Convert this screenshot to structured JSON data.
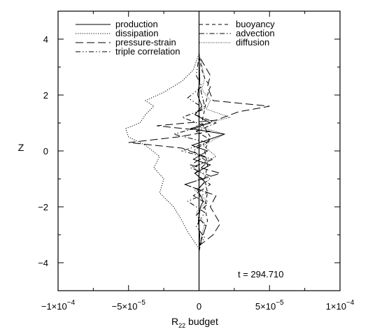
{
  "chart_data": {
    "type": "line",
    "title": "",
    "xlabel": "R",
    "xlabel_sub": "22",
    "xlabel_rest": " budget",
    "ylabel": "Z",
    "xlim": [
      -0.0001,
      0.0001
    ],
    "ylim": [
      -5,
      5
    ],
    "xticks": [
      -0.0001,
      -5e-05,
      0,
      5e-05,
      0.0001
    ],
    "xtick_labels": [
      {
        "base": "−1×10",
        "exp": "−4"
      },
      {
        "base": "−5×10",
        "exp": "−5"
      },
      {
        "base": "0",
        "exp": ""
      },
      {
        "base": "5×10",
        "exp": "−5"
      },
      {
        "base": "1×10",
        "exp": "−4"
      }
    ],
    "yticks": [
      -4,
      -2,
      0,
      2,
      4
    ],
    "ytick_labels": [
      "−4",
      "−2",
      "0",
      "2",
      "4"
    ],
    "annotation": "t = 294.710",
    "legend_placement": "top, two columns",
    "series": [
      {
        "name": "production",
        "style": "solid",
        "points": [
          [
            0,
            -3.6
          ],
          [
            5e-07,
            -3.0
          ],
          [
            -5e-07,
            -2.5
          ],
          [
            1e-06,
            -2.0
          ],
          [
            3e-06,
            -1.8
          ],
          [
            -1e-06,
            -1.4
          ],
          [
            4e-06,
            -1.1
          ],
          [
            -3e-06,
            -0.8
          ],
          [
            8e-06,
            -0.5
          ],
          [
            -4e-06,
            -0.3
          ],
          [
            6e-06,
            0.0
          ],
          [
            -5e-06,
            0.2
          ],
          [
            1.8e-05,
            0.6
          ],
          [
            -6e-06,
            0.8
          ],
          [
            8e-06,
            1.0
          ],
          [
            -3e-06,
            1.3
          ],
          [
            2e-06,
            1.6
          ],
          [
            -1e-06,
            2.0
          ],
          [
            5e-07,
            2.5
          ],
          [
            0,
            3.6
          ]
        ]
      },
      {
        "name": "dissipation",
        "style": "dotted",
        "points": [
          [
            0,
            -3.5
          ],
          [
            -4e-06,
            -3.2
          ],
          [
            -8e-06,
            -2.9
          ],
          [
            -1.2e-05,
            -2.5
          ],
          [
            -1.8e-05,
            -2.0
          ],
          [
            -2.8e-05,
            -1.5
          ],
          [
            -2.5e-05,
            -1.0
          ],
          [
            -3.2e-05,
            -0.6
          ],
          [
            -2.8e-05,
            -0.2
          ],
          [
            -3.8e-05,
            0.2
          ],
          [
            -5e-05,
            0.5
          ],
          [
            -5.2e-05,
            0.8
          ],
          [
            -4.2e-05,
            1.0
          ],
          [
            -3.8e-05,
            1.3
          ],
          [
            -3.2e-05,
            1.6
          ],
          [
            -3.8e-05,
            1.8
          ],
          [
            -2.5e-05,
            2.1
          ],
          [
            -1.2e-05,
            2.5
          ],
          [
            -4e-06,
            2.9
          ],
          [
            0,
            3.5
          ]
        ]
      },
      {
        "name": "pressure-strain",
        "style": "longdash",
        "points": [
          [
            0,
            -3.4
          ],
          [
            1e-05,
            -3.0
          ],
          [
            1.5e-05,
            -2.6
          ],
          [
            8e-06,
            -2.0
          ],
          [
            1.2e-05,
            -1.6
          ],
          [
            -1e-05,
            -1.2
          ],
          [
            1.5e-05,
            -0.8
          ],
          [
            -6e-06,
            -0.5
          ],
          [
            4e-06,
            -0.2
          ],
          [
            -1.2e-05,
            0.1
          ],
          [
            -5e-05,
            0.3
          ],
          [
            -1.5e-05,
            0.5
          ],
          [
            8e-06,
            0.7
          ],
          [
            -3e-05,
            0.9
          ],
          [
            1.2e-05,
            1.1
          ],
          [
            2.8e-05,
            1.4
          ],
          [
            5e-05,
            1.6
          ],
          [
            1e-05,
            1.8
          ],
          [
            6e-06,
            2.3
          ],
          [
            8e-06,
            2.7
          ],
          [
            0,
            3.4
          ]
        ]
      },
      {
        "name": "triple correlation",
        "style": "dashdotdot",
        "points": [
          [
            0,
            -3.4
          ],
          [
            4e-06,
            -3.1
          ],
          [
            -2e-06,
            -2.7
          ],
          [
            4e-06,
            -2.2
          ],
          [
            -8e-06,
            -1.8
          ],
          [
            6e-06,
            -1.5
          ],
          [
            -1e-05,
            -1.2
          ],
          [
            8e-06,
            -0.9
          ],
          [
            -6e-06,
            -0.6
          ],
          [
            1e-05,
            -0.3
          ],
          [
            -1.2e-05,
            0.0
          ],
          [
            6e-06,
            0.3
          ],
          [
            -1.8e-05,
            0.6
          ],
          [
            4e-06,
            0.9
          ],
          [
            -1.2e-05,
            1.2
          ],
          [
            4e-06,
            1.5
          ],
          [
            -8e-06,
            1.9
          ],
          [
            2e-06,
            2.3
          ],
          [
            -2e-06,
            2.7
          ],
          [
            0,
            3.4
          ]
        ]
      },
      {
        "name": "buoyancy",
        "style": "shortdash",
        "points": [
          [
            0,
            -3.4
          ],
          [
            3e-06,
            -3.0
          ],
          [
            6e-06,
            -2.5
          ],
          [
            4e-06,
            -2.0
          ],
          [
            6e-06,
            -1.5
          ],
          [
            4e-06,
            -1.0
          ],
          [
            6e-06,
            -0.5
          ],
          [
            4e-06,
            0.0
          ],
          [
            8e-06,
            0.5
          ],
          [
            2e-06,
            1.0
          ],
          [
            4e-06,
            1.5
          ],
          [
            6e-06,
            2.0
          ],
          [
            8e-06,
            2.3
          ],
          [
            4e-06,
            2.6
          ],
          [
            2e-06,
            2.9
          ],
          [
            0,
            3.4
          ]
        ]
      },
      {
        "name": "advection",
        "style": "dashdot",
        "points": [
          [
            0,
            -3.6
          ],
          [
            2e-06,
            -3.1
          ],
          [
            5e-06,
            -2.7
          ],
          [
            -2e-06,
            -2.3
          ],
          [
            6e-06,
            -1.9
          ],
          [
            -4e-06,
            -1.6
          ],
          [
            8e-06,
            -1.2
          ],
          [
            -3e-06,
            -0.8
          ],
          [
            6e-06,
            -0.4
          ],
          [
            -4e-06,
            0.0
          ],
          [
            8e-06,
            0.4
          ],
          [
            -2e-06,
            0.7
          ],
          [
            1.2e-05,
            1.0
          ],
          [
            -3e-06,
            1.3
          ],
          [
            4e-06,
            1.6
          ],
          [
            2e-06,
            2.0
          ],
          [
            0,
            2.5
          ],
          [
            0,
            3.6
          ]
        ]
      },
      {
        "name": "diffusion",
        "style": "finedot",
        "points": [
          [
            0,
            -3.5
          ],
          [
            2e-06,
            -3.0
          ],
          [
            4e-06,
            -2.6
          ],
          [
            -2e-06,
            -2.2
          ],
          [
            6e-06,
            -1.8
          ],
          [
            -3e-06,
            -1.4
          ],
          [
            8e-06,
            -1.0
          ],
          [
            -4e-06,
            -0.6
          ],
          [
            1.2e-05,
            -0.2
          ],
          [
            3e-06,
            0.2
          ],
          [
            1.8e-05,
            0.6
          ],
          [
            -2e-06,
            0.9
          ],
          [
            2.2e-05,
            1.2
          ],
          [
            5e-06,
            1.5
          ],
          [
            8e-06,
            1.8
          ],
          [
            2e-06,
            2.2
          ],
          [
            4e-06,
            2.6
          ],
          [
            0,
            3.5
          ]
        ]
      }
    ]
  }
}
